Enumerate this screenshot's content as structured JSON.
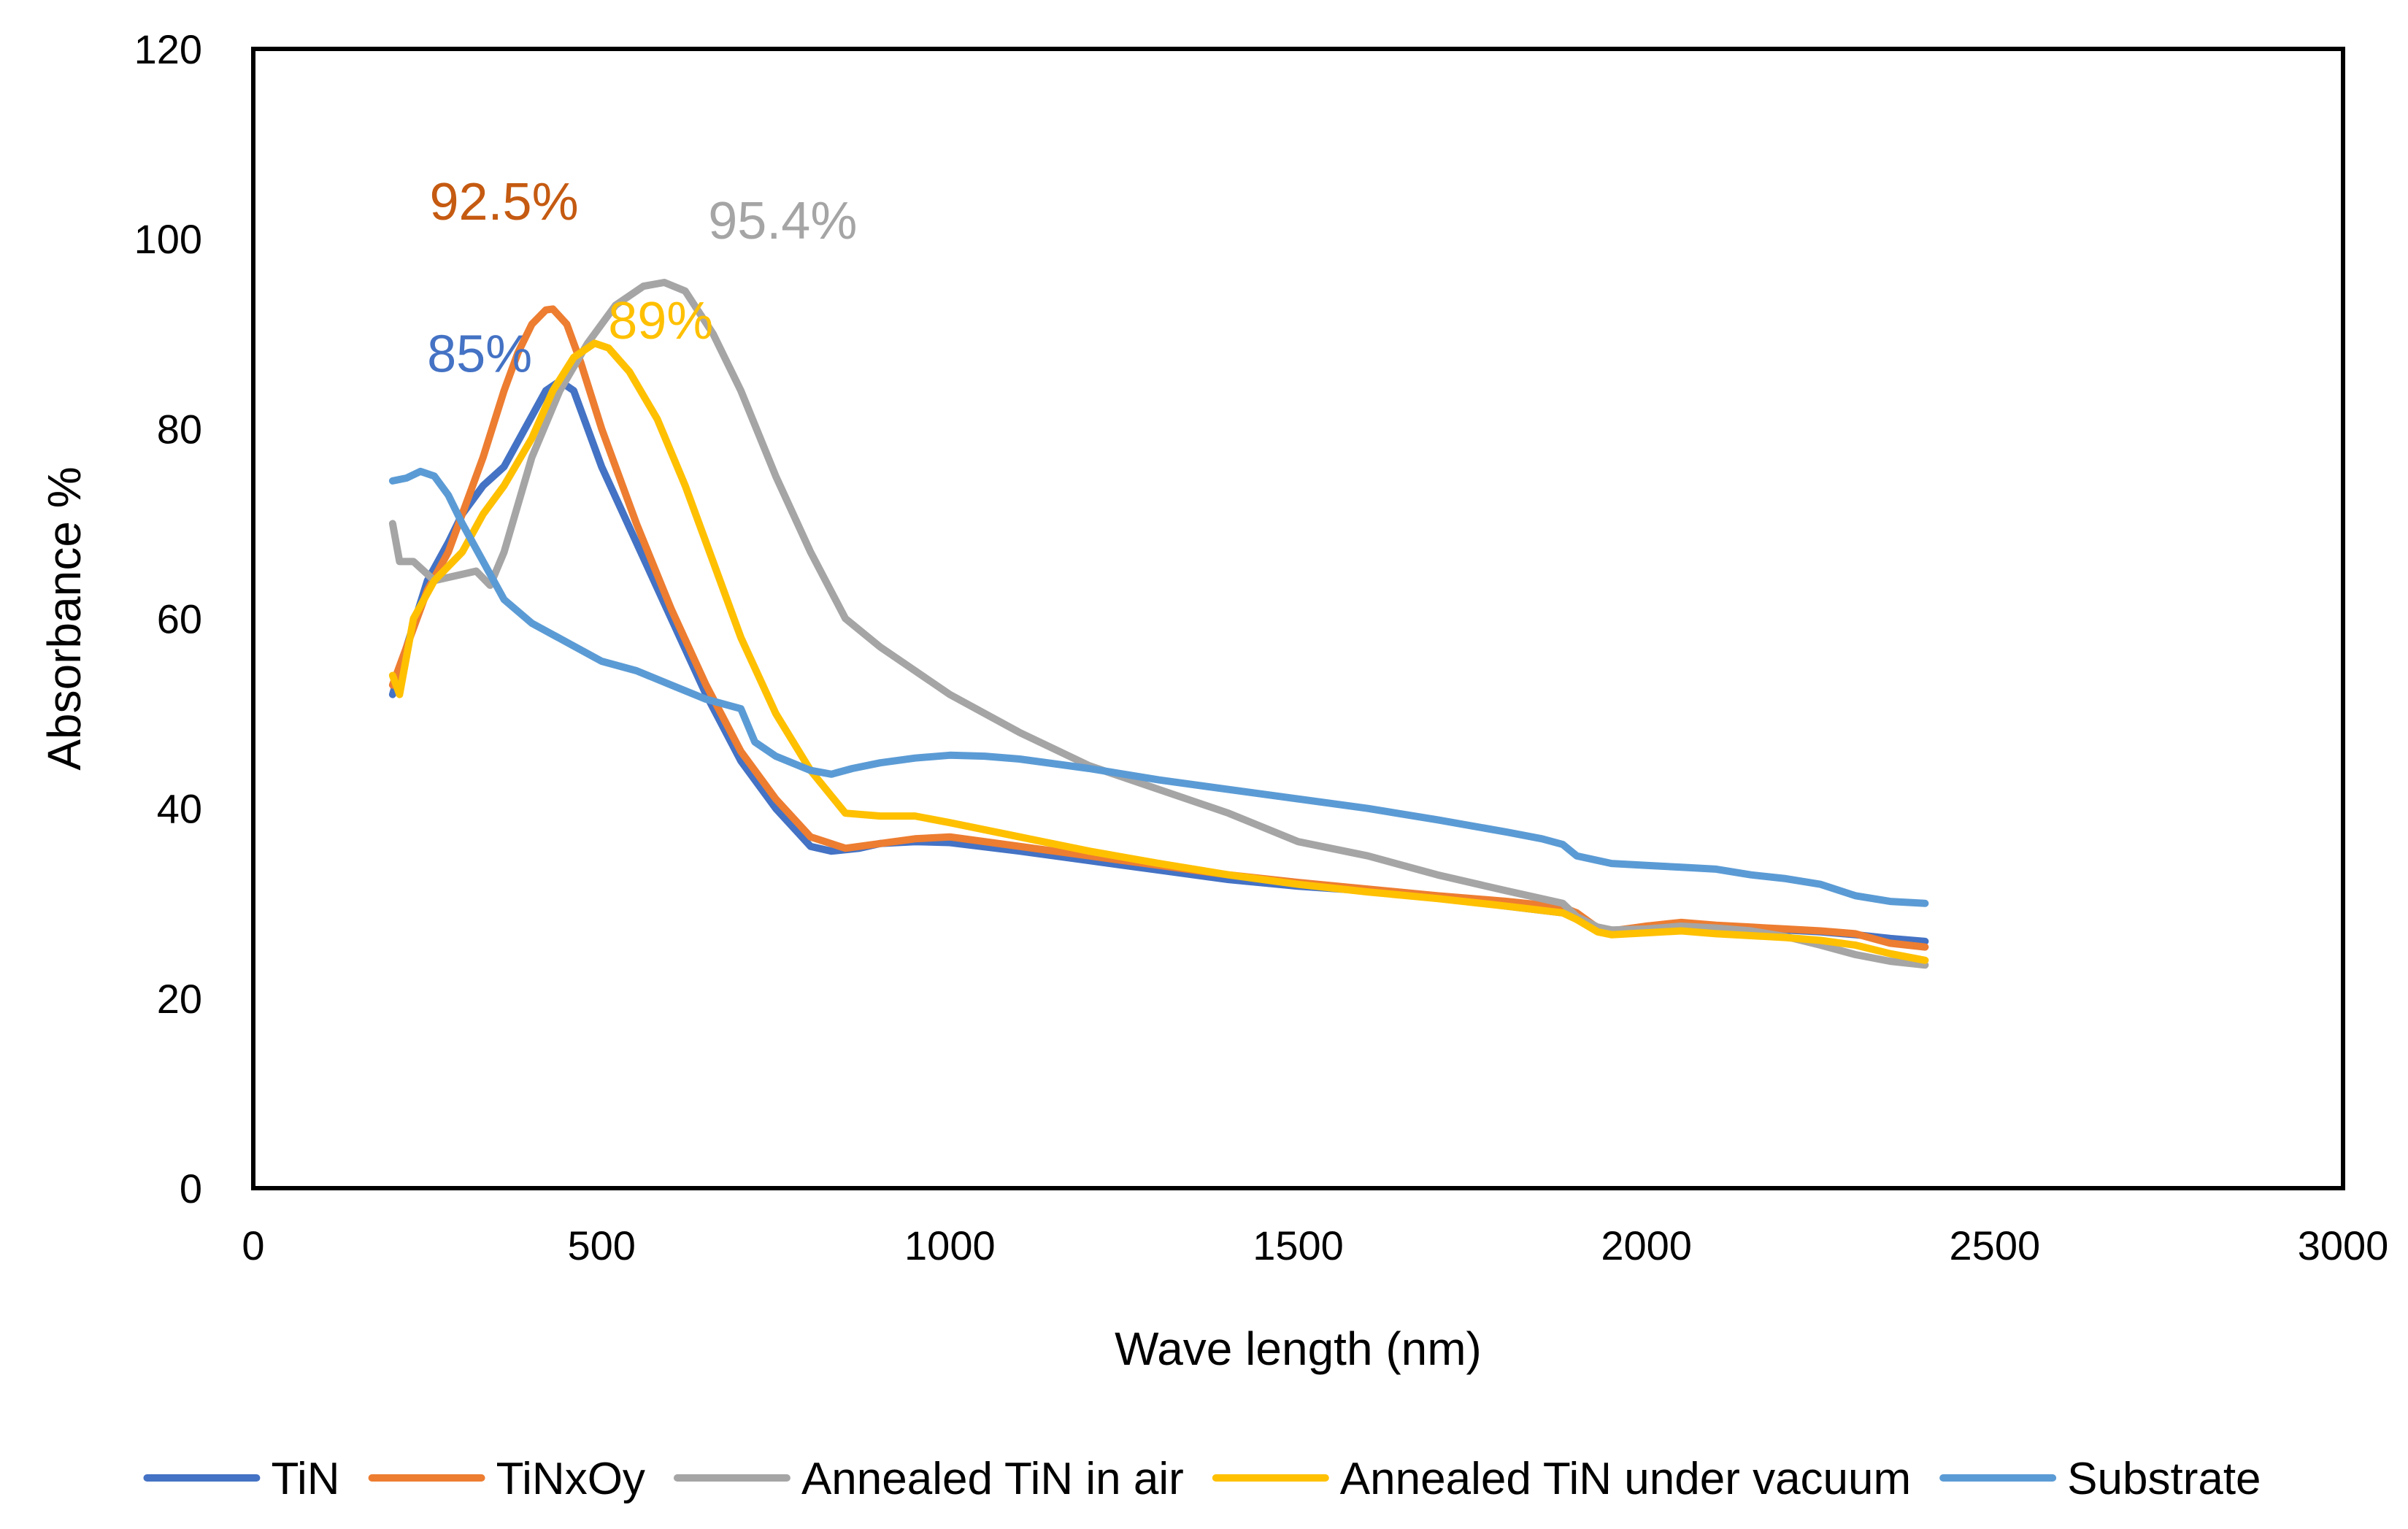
{
  "chart_data": {
    "type": "line",
    "title": "",
    "xlabel": "Wave length (nm)",
    "ylabel": "Absorbance %",
    "xlim": [
      0,
      3000
    ],
    "ylim": [
      0,
      120
    ],
    "xticks": [
      0,
      500,
      1000,
      1500,
      2000,
      2500,
      3000
    ],
    "yticks": [
      0,
      20,
      40,
      60,
      80,
      100,
      120
    ],
    "grid": false,
    "legend_position": "bottom",
    "series": [
      {
        "name": "TiN",
        "color": "#4472C4",
        "x": [
          200,
          220,
          250,
          280,
          300,
          330,
          360,
          390,
          420,
          440,
          460,
          480,
          500,
          550,
          600,
          650,
          700,
          750,
          800,
          830,
          870,
          900,
          950,
          1000,
          1100,
          1200,
          1300,
          1400,
          1500,
          1600,
          1700,
          1800,
          1880,
          1900,
          1930,
          1950,
          2000,
          2050,
          2100,
          2150,
          2200,
          2250,
          2300,
          2350,
          2400
        ],
        "values": [
          52,
          57,
          64,
          68,
          71,
          74,
          76,
          80,
          84,
          85,
          84,
          80,
          76,
          68,
          60,
          52,
          45,
          40,
          36,
          35.5,
          35.8,
          36.3,
          36.5,
          36.4,
          35.5,
          34.5,
          33.5,
          32.5,
          31.8,
          31.3,
          30.6,
          29.7,
          29,
          28.6,
          27.3,
          27,
          27.6,
          27.9,
          27.6,
          27.4,
          27.2,
          27,
          26.7,
          26.3,
          26
        ]
      },
      {
        "name": "TiNxOy",
        "color": "#ED7D31",
        "x": [
          200,
          220,
          250,
          280,
          300,
          330,
          360,
          380,
          400,
          420,
          430,
          450,
          470,
          500,
          550,
          600,
          650,
          700,
          750,
          800,
          850,
          900,
          950,
          1000,
          1100,
          1200,
          1300,
          1400,
          1500,
          1600,
          1700,
          1800,
          1880,
          1900,
          1930,
          1950,
          2000,
          2050,
          2100,
          2150,
          2200,
          2250,
          2300,
          2350,
          2400
        ],
        "values": [
          53,
          57,
          63,
          67,
          71,
          77,
          84,
          88,
          91,
          92.5,
          92.6,
          91,
          87,
          80,
          70,
          61,
          53,
          46,
          41,
          37,
          35.8,
          36.3,
          36.8,
          37,
          36,
          35,
          34,
          33,
          32.2,
          31.5,
          30.8,
          30.2,
          29.6,
          29,
          27.4,
          27.1,
          27.6,
          28,
          27.7,
          27.5,
          27.3,
          27.1,
          26.8,
          25.8,
          25.4
        ]
      },
      {
        "name": "Annealed TiN in air",
        "color": "#A5A5A5",
        "x": [
          200,
          210,
          230,
          260,
          290,
          320,
          340,
          360,
          380,
          400,
          440,
          480,
          520,
          560,
          590,
          620,
          660,
          700,
          750,
          800,
          850,
          900,
          1000,
          1100,
          1200,
          1300,
          1400,
          1500,
          1600,
          1700,
          1800,
          1880,
          1900,
          1930,
          1950,
          2000,
          2050,
          2100,
          2150,
          2200,
          2250,
          2300,
          2350,
          2400
        ],
        "values": [
          70,
          66,
          66,
          64,
          64.5,
          65,
          63.5,
          67,
          72,
          77,
          84,
          89,
          93,
          95,
          95.4,
          94.5,
          90,
          84,
          75,
          67,
          60,
          57,
          52,
          48,
          44.5,
          42,
          39.5,
          36.5,
          35,
          33,
          31.3,
          30,
          28.6,
          27.5,
          27.2,
          27.3,
          27.6,
          27.4,
          27.1,
          26.5,
          25.6,
          24.6,
          23.9,
          23.5
        ]
      },
      {
        "name": "Annealed TiN under vacuum",
        "color": "#FFC000",
        "x": [
          200,
          210,
          230,
          260,
          300,
          330,
          360,
          400,
          430,
          460,
          490,
          510,
          540,
          580,
          620,
          660,
          700,
          750,
          800,
          850,
          900,
          950,
          1000,
          1100,
          1200,
          1300,
          1400,
          1500,
          1600,
          1700,
          1800,
          1880,
          1900,
          1930,
          1950,
          2000,
          2050,
          2100,
          2150,
          2200,
          2250,
          2300,
          2350,
          2400
        ],
        "values": [
          54,
          52,
          60,
          64,
          67,
          71,
          74,
          79,
          84,
          87.5,
          89,
          88.5,
          86,
          81,
          74,
          66,
          58,
          50,
          44,
          39.5,
          39.2,
          39.2,
          38.5,
          37,
          35.5,
          34.2,
          33,
          32,
          31.2,
          30.5,
          29.7,
          29,
          28.3,
          27,
          26.7,
          26.9,
          27.1,
          26.8,
          26.6,
          26.4,
          26.1,
          25.6,
          24.7,
          24
        ]
      },
      {
        "name": "Substrate",
        "color": "#5B9BD5",
        "x": [
          200,
          220,
          240,
          260,
          280,
          300,
          330,
          360,
          400,
          450,
          500,
          550,
          600,
          650,
          700,
          720,
          750,
          800,
          830,
          860,
          900,
          950,
          1000,
          1050,
          1100,
          1200,
          1300,
          1400,
          1500,
          1600,
          1700,
          1800,
          1850,
          1880,
          1900,
          1950,
          2000,
          2050,
          2100,
          2150,
          2200,
          2250,
          2300,
          2350,
          2400
        ],
        "values": [
          74.5,
          74.8,
          75.5,
          75,
          73,
          70,
          66,
          62,
          59.5,
          57.5,
          55.5,
          54.5,
          53,
          51.5,
          50.5,
          47,
          45.5,
          44,
          43.6,
          44.2,
          44.8,
          45.3,
          45.6,
          45.5,
          45.2,
          44.2,
          43,
          42,
          41,
          40,
          38.8,
          37.5,
          36.8,
          36.2,
          35,
          34.2,
          34,
          33.8,
          33.6,
          33,
          32.6,
          32,
          30.8,
          30.2,
          30
        ]
      }
    ],
    "annotations": [
      {
        "text": "92.5%",
        "color": "#C55A11",
        "x": 360,
        "y": 102
      },
      {
        "text": "95.4%",
        "color": "#A5A5A5",
        "x": 760,
        "y": 100
      },
      {
        "text": "85%",
        "color": "#4472C4",
        "x": 325,
        "y": 86
      },
      {
        "text": "89%",
        "color": "#FFC000",
        "x": 585,
        "y": 89.5
      }
    ]
  }
}
